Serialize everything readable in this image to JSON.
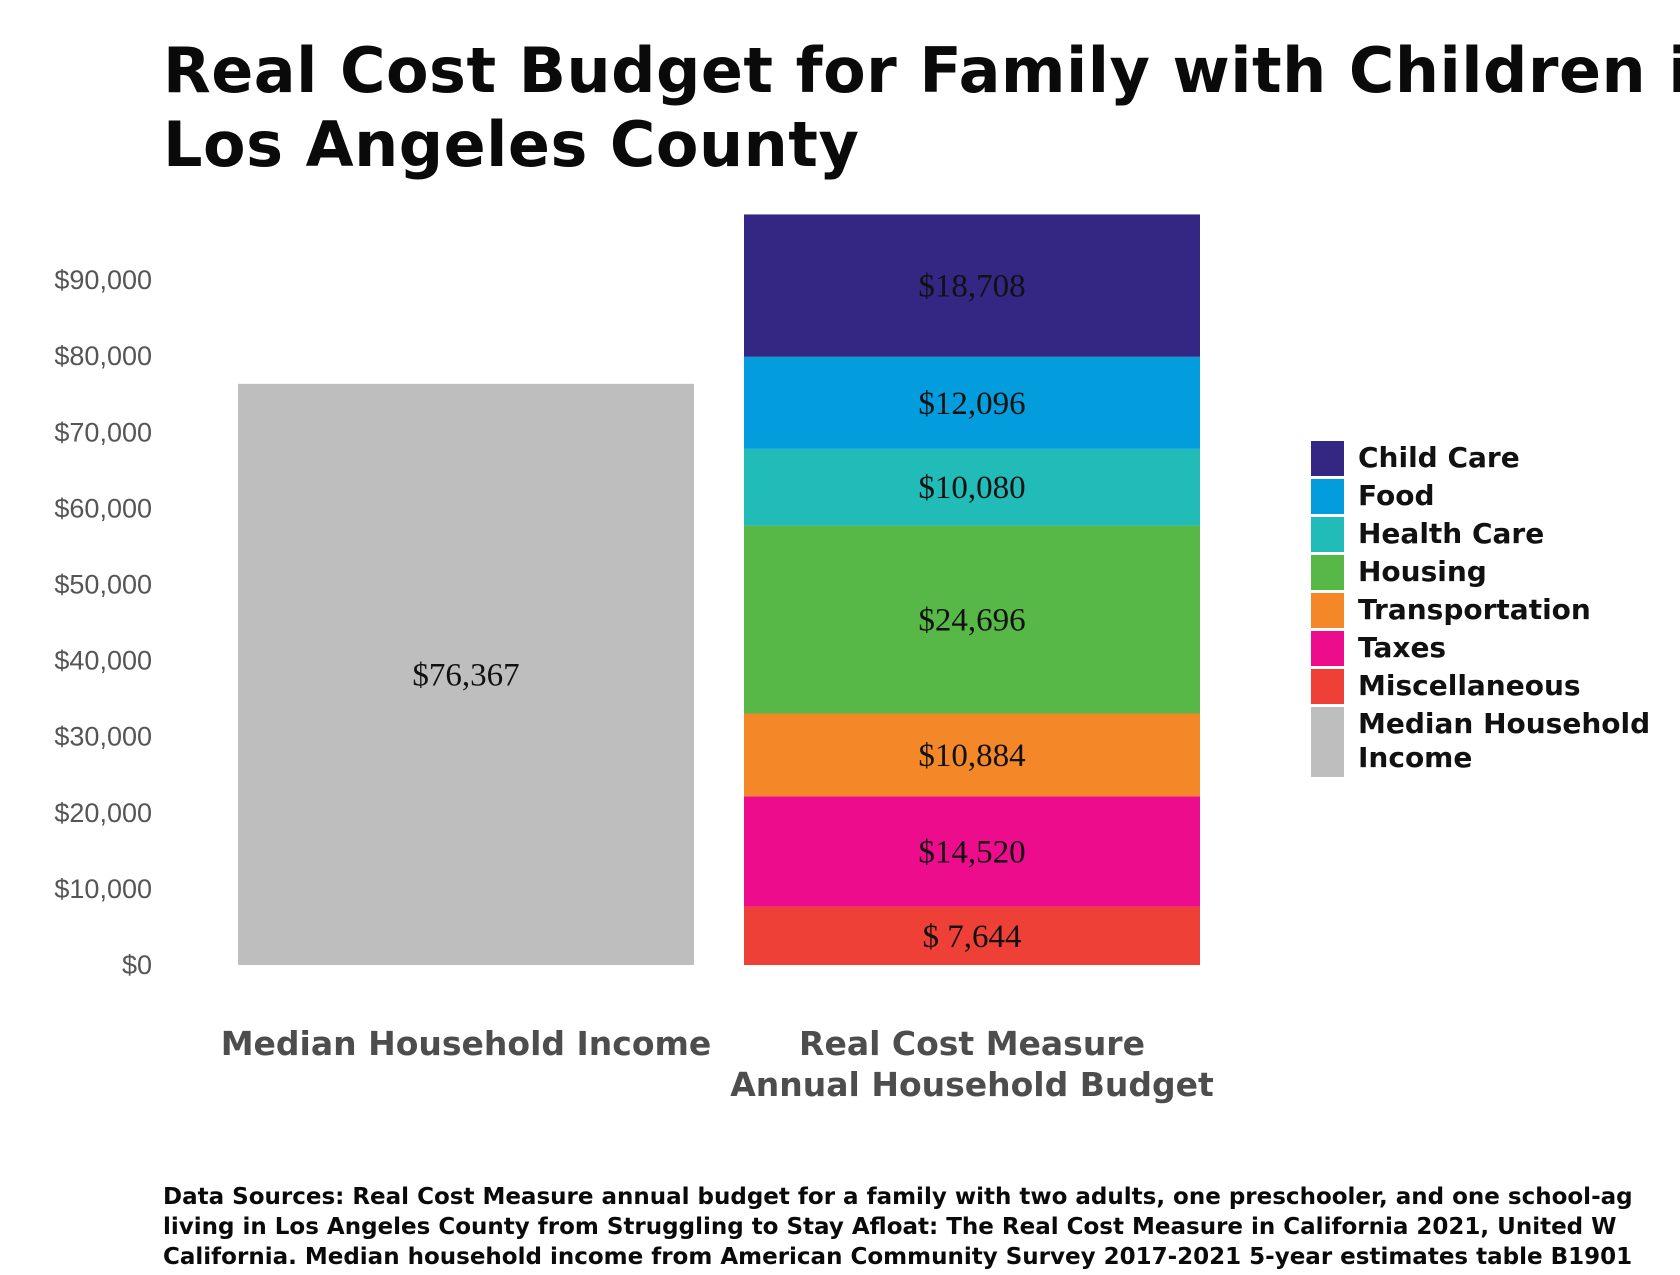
{
  "title_lines": [
    "Real Cost Budget for Family with Children in",
    "Los Angeles County"
  ],
  "footer_lines": [
    "Data Sources: Real Cost Measure annual budget for a family with two adults, one preschooler, and one school-ag",
    "living in Los Angeles County from Struggling to Stay Afloat: The Real Cost Measure in California 2021, United W",
    "California. Median household income from American Community Survey 2017-2021 5-year estimates table B1901"
  ],
  "chart_data": {
    "type": "bar",
    "stacked": true,
    "ylim": [
      0,
      100000
    ],
    "yticks": [
      0,
      10000,
      20000,
      30000,
      40000,
      50000,
      60000,
      70000,
      80000,
      90000
    ],
    "ytick_labels": [
      "$0",
      "$10,000",
      "$20,000",
      "$30,000",
      "$40,000",
      "$50,000",
      "$60,000",
      "$70,000",
      "$80,000",
      "$90,000"
    ],
    "grid": false,
    "legend_position": "right",
    "categories": [
      {
        "lines": [
          "Median Household Income"
        ]
      },
      {
        "lines": [
          "Real Cost Measure",
          "Annual Household Budget"
        ]
      }
    ],
    "series": [
      {
        "name": "Miscellaneous",
        "color": "#ee4036",
        "category_index": 1,
        "value": 7644,
        "label": "$ 7,644"
      },
      {
        "name": "Taxes",
        "color": "#ec0c8c",
        "category_index": 1,
        "value": 14520,
        "label": "$14,520"
      },
      {
        "name": "Transportation",
        "color": "#f48829",
        "category_index": 1,
        "value": 10884,
        "label": "$10,884"
      },
      {
        "name": "Housing",
        "color": "#57b847",
        "category_index": 1,
        "value": 24696,
        "label": "$24,696"
      },
      {
        "name": "Health Care",
        "color": "#21bbb8",
        "category_index": 1,
        "value": 10080,
        "label": "$10,080"
      },
      {
        "name": "Food",
        "color": "#039ddd",
        "category_index": 1,
        "value": 12096,
        "label": "$12,096"
      },
      {
        "name": "Child Care",
        "color": "#332783",
        "category_index": 1,
        "value": 18708,
        "label": "$18,708"
      },
      {
        "name": "Median Household Income",
        "color": "#bebebe",
        "category_index": 0,
        "value": 76367,
        "label": "$76,367"
      }
    ],
    "legend": [
      {
        "lines": [
          "Child Care"
        ],
        "color": "#332783"
      },
      {
        "lines": [
          "Food"
        ],
        "color": "#039ddd"
      },
      {
        "lines": [
          "Health Care"
        ],
        "color": "#21bbb8"
      },
      {
        "lines": [
          "Housing"
        ],
        "color": "#57b847"
      },
      {
        "lines": [
          "Transportation"
        ],
        "color": "#f48829"
      },
      {
        "lines": [
          "Taxes"
        ],
        "color": "#ec0c8c"
      },
      {
        "lines": [
          "Miscellaneous"
        ],
        "color": "#ee4036"
      },
      {
        "lines": [
          "Median Household",
          "Income"
        ],
        "color": "#bebebe"
      }
    ]
  }
}
